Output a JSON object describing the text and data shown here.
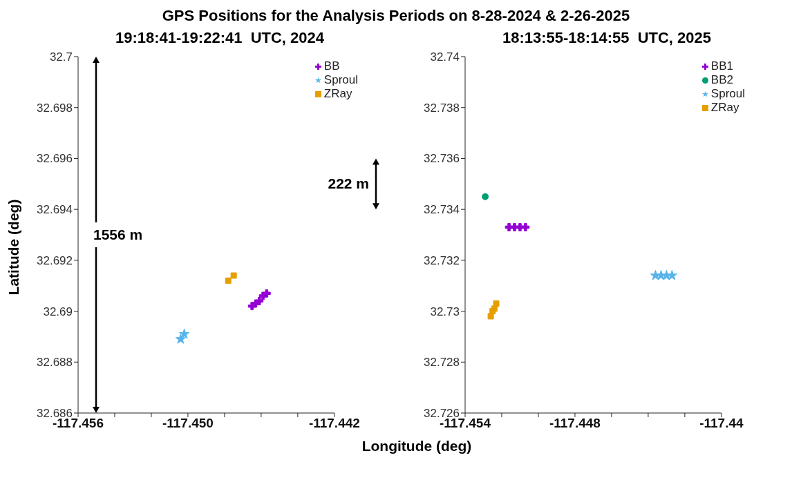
{
  "chart_data": [
    {
      "type": "scatter",
      "title": "GPS Positions for the Analysis Periods on 8-28-2024 & 2-26-2025",
      "subtitle": "19:18:41-19:22:41  UTC, 2024",
      "xlabel": "Longitude (deg)",
      "ylabel": "Latitude (deg)",
      "xlim": [
        -117.456,
        -117.442
      ],
      "xticks": [
        -117.456,
        {
          "value": -117.454,
          "label": null
        },
        {
          "value": -117.452,
          "label": null
        },
        {
          "value": -117.45,
          "label": "-117.450"
        },
        {
          "value": -117.448,
          "label": null
        },
        {
          "value": -117.446,
          "label": null
        },
        {
          "value": -117.444,
          "label": null
        },
        -117.442
      ],
      "ylim": [
        32.686,
        32.7
      ],
      "yticks": [
        32.686,
        32.688,
        32.69,
        32.692,
        32.694,
        32.696,
        32.698,
        32.7
      ],
      "grid": false,
      "legend": "top right",
      "annotations": [
        "1556 m",
        "222 m"
      ],
      "series": [
        {
          "name": "BB",
          "color": "#9400d3",
          "marker": "cross",
          "x": [
            -117.4465,
            -117.4463,
            -117.4461,
            -117.4459,
            -117.4457
          ],
          "values": [
            32.6902,
            32.6903,
            32.6904,
            32.6906,
            32.6907
          ]
        },
        {
          "name": "Sproul",
          "color": "#56b4e9",
          "marker": "star",
          "x": [
            -117.4504,
            -117.4502
          ],
          "values": [
            32.6889,
            32.6891
          ]
        },
        {
          "name": "ZRay",
          "color": "#e69f00",
          "marker": "square",
          "x": [
            -117.4478,
            -117.4475
          ],
          "values": [
            32.6912,
            32.6914
          ]
        }
      ]
    },
    {
      "type": "scatter",
      "subtitle": "18:13:55-18:14:55  UTC, 2025",
      "xlim": [
        -117.454,
        -117.44
      ],
      "xticks": [
        -117.454,
        {
          "value": -117.452,
          "label": null
        },
        {
          "value": -117.45,
          "label": null
        },
        -117.448,
        {
          "value": -117.446,
          "label": null
        },
        {
          "value": -117.444,
          "label": null
        },
        {
          "value": -117.442,
          "label": null
        },
        -117.44
      ],
      "ylim": [
        32.726,
        32.74
      ],
      "yticks": [
        32.726,
        32.728,
        32.73,
        32.732,
        32.734,
        32.736,
        32.738,
        32.74
      ],
      "grid": false,
      "legend": "top right",
      "series": [
        {
          "name": "BB1",
          "color": "#9400d3",
          "marker": "cross",
          "x": [
            -117.4516,
            -117.4513,
            -117.451,
            -117.4507
          ],
          "values": [
            32.7333,
            32.7333,
            32.7333,
            32.7333
          ]
        },
        {
          "name": "BB2",
          "color": "#009e73",
          "marker": "circle",
          "x": [
            -117.4529
          ],
          "values": [
            32.7345
          ]
        },
        {
          "name": "Sproul",
          "color": "#56b4e9",
          "marker": "star",
          "x": [
            -117.4436,
            -117.4433,
            -117.443,
            -117.4427
          ],
          "values": [
            32.7314,
            32.7314,
            32.7314,
            32.7314
          ]
        },
        {
          "name": "ZRay",
          "color": "#e69f00",
          "marker": "square",
          "x": [
            -117.4526,
            -117.4525,
            -117.4524,
            -117.4523
          ],
          "values": [
            32.7298,
            32.73,
            32.7301,
            32.7303
          ]
        }
      ]
    }
  ]
}
